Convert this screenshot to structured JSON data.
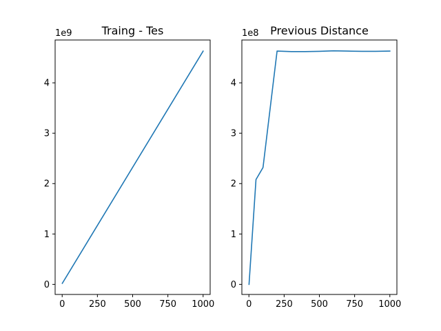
{
  "chart_data": [
    {
      "type": "line",
      "title": "Traing - Tes",
      "xlabel": "",
      "ylabel": "",
      "y_offset_label": "1e9",
      "xlim": [
        -50,
        1050
      ],
      "ylim": [
        -0.2,
        4.85
      ],
      "x_ticks": [
        0,
        250,
        500,
        750,
        1000
      ],
      "x_tick_labels": [
        "0",
        "250",
        "500",
        "750",
        "1000"
      ],
      "y_ticks": [
        0,
        1,
        2,
        3,
        4
      ],
      "y_tick_labels": [
        "0",
        "1",
        "2",
        "3",
        "4"
      ],
      "grid": false,
      "series": [
        {
          "color": "#1f77b4",
          "points": [
            [
              1,
              0.02
            ],
            [
              1000,
              4.63
            ]
          ]
        }
      ]
    },
    {
      "type": "line",
      "title": "Previous Distance",
      "xlabel": "",
      "ylabel": "",
      "y_offset_label": "1e8",
      "xlim": [
        -50,
        1050
      ],
      "ylim": [
        -0.2,
        4.85
      ],
      "x_ticks": [
        0,
        250,
        500,
        750,
        1000
      ],
      "x_tick_labels": [
        "0",
        "250",
        "500",
        "750",
        "1000"
      ],
      "y_ticks": [
        0,
        1,
        2,
        3,
        4
      ],
      "y_tick_labels": [
        "0",
        "1",
        "2",
        "3",
        "4"
      ],
      "grid": false,
      "series": [
        {
          "color": "#1f77b4",
          "points": [
            [
              1,
              0.0
            ],
            [
              50,
              2.08
            ],
            [
              100,
              2.32
            ],
            [
              200,
              4.63
            ],
            [
              300,
              4.62
            ],
            [
              400,
              4.62
            ],
            [
              500,
              4.625
            ],
            [
              600,
              4.635
            ],
            [
              700,
              4.63
            ],
            [
              800,
              4.625
            ],
            [
              900,
              4.625
            ],
            [
              1000,
              4.63
            ]
          ]
        }
      ]
    }
  ]
}
